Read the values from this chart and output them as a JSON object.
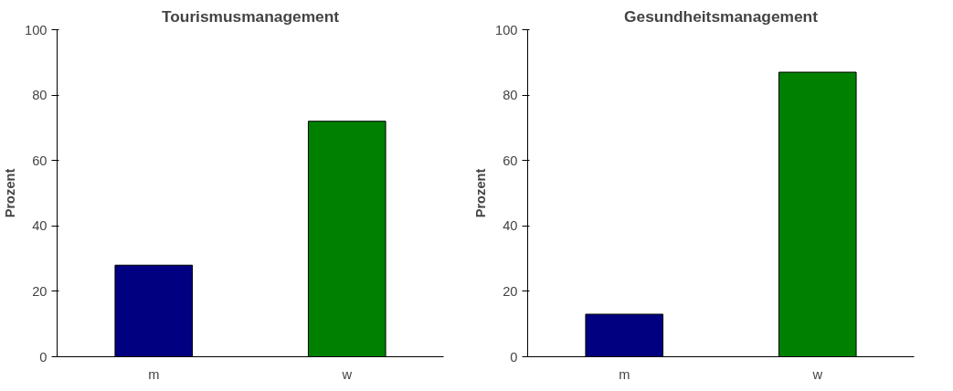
{
  "chart_data": [
    {
      "type": "bar",
      "title": "Tourismusmanagement",
      "ylabel": "Prozent",
      "categories": [
        "m",
        "w"
      ],
      "values": [
        28,
        72
      ],
      "colors": [
        "#000080",
        "#008000"
      ],
      "ylim": [
        0,
        100
      ],
      "yticks": [
        0,
        20,
        40,
        60,
        80,
        100
      ],
      "grid": false
    },
    {
      "type": "bar",
      "title": "Gesundheitsmanagement",
      "ylabel": "Prozent",
      "categories": [
        "m",
        "w"
      ],
      "values": [
        13,
        87
      ],
      "colors": [
        "#000080",
        "#008000"
      ],
      "ylim": [
        0,
        100
      ],
      "yticks": [
        0,
        20,
        40,
        60,
        80,
        100
      ],
      "grid": false
    }
  ]
}
